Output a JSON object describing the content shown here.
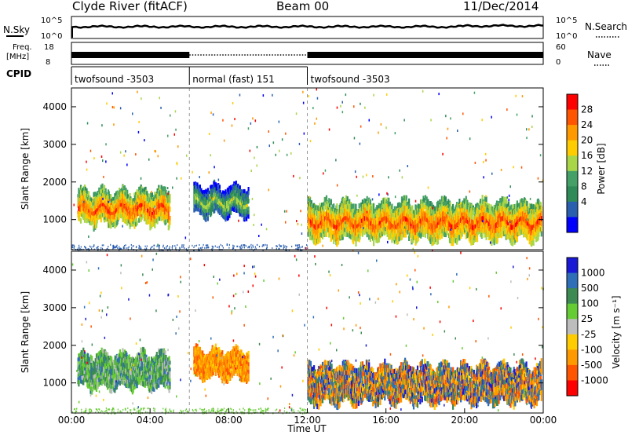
{
  "header": {
    "title": "Clyde River (fitACF)",
    "beam": "Beam 00",
    "date": "11/Dec/2014"
  },
  "sky_panel": {
    "left_label": "N.Sky",
    "right_label": "N.Search",
    "left_ticks": [
      "10^5",
      "10^0"
    ],
    "right_ticks": [
      "10^5",
      "10^0"
    ]
  },
  "freq_panel": {
    "left_label_1": "Freq.",
    "left_label_2": "[MHz]",
    "right_label": "Nave",
    "left_ticks": [
      "18",
      "8"
    ],
    "right_ticks": [
      "60",
      "0"
    ]
  },
  "cpid": {
    "label": "CPID",
    "segments": [
      {
        "name": "twofsound -3503",
        "start_hour": 0,
        "end_hour": 6
      },
      {
        "name": "normal (fast) 151",
        "start_hour": 6,
        "end_hour": 12
      },
      {
        "name": "twofsound -3503",
        "start_hour": 12,
        "end_hour": 24
      }
    ]
  },
  "chart_data": [
    {
      "type": "heatmap",
      "panel": "power",
      "ylabel": "Slant Range [km]",
      "ylim": [
        200,
        4500
      ],
      "xlim_hours": [
        0,
        24
      ],
      "yticks": [
        "1000",
        "2000",
        "3000",
        "4000"
      ],
      "colorbar": {
        "label": "Power [dB]",
        "ticks": [
          "28",
          "24",
          "20",
          "16",
          "12",
          "8",
          "4"
        ],
        "colors": [
          "#ff0000",
          "#ff5500",
          "#ff9900",
          "#ffcc00",
          "#a8d648",
          "#44a066",
          "#2e8b57",
          "#2a5fb0",
          "#0000ff"
        ]
      },
      "regions": [
        {
          "x": [
            0.3,
            5.0
          ],
          "y": [
            850,
            1800
          ],
          "level": "high"
        },
        {
          "x": [
            6.2,
            9.0
          ],
          "y": [
            1100,
            1900
          ],
          "level": "mid"
        },
        {
          "x": [
            12.0,
            23.9
          ],
          "y": [
            450,
            1500
          ],
          "level": "high"
        }
      ]
    },
    {
      "type": "heatmap",
      "panel": "velocity",
      "xlabel": "Time UT",
      "ylabel": "Slant Range [km]",
      "ylim": [
        200,
        4500
      ],
      "xlim_hours": [
        0,
        24
      ],
      "yticks": [
        "1000",
        "2000",
        "3000",
        "4000"
      ],
      "xticks": [
        "00:00",
        "04:00",
        "08:00",
        "12:00",
        "16:00",
        "20:00",
        "00:00"
      ],
      "colorbar": {
        "label": "Velocity [m s⁻¹]",
        "ticks": [
          "1000",
          "500",
          "100",
          "25",
          "-25",
          "-100",
          "-500",
          "-1000"
        ],
        "colors": [
          "#1a1ad6",
          "#2f6fb8",
          "#3d8a52",
          "#66cc33",
          "#bdbdbd",
          "#ffcc00",
          "#ff9900",
          "#ff5500",
          "#ff0000"
        ]
      },
      "regions": [
        {
          "x": [
            0.3,
            5.0
          ],
          "y": [
            850,
            1800
          ],
          "level": "green"
        },
        {
          "x": [
            6.2,
            9.0
          ],
          "y": [
            1100,
            1900
          ],
          "level": "orange"
        },
        {
          "x": [
            12.0,
            23.9
          ],
          "y": [
            450,
            1500
          ],
          "level": "mixed"
        }
      ]
    }
  ]
}
